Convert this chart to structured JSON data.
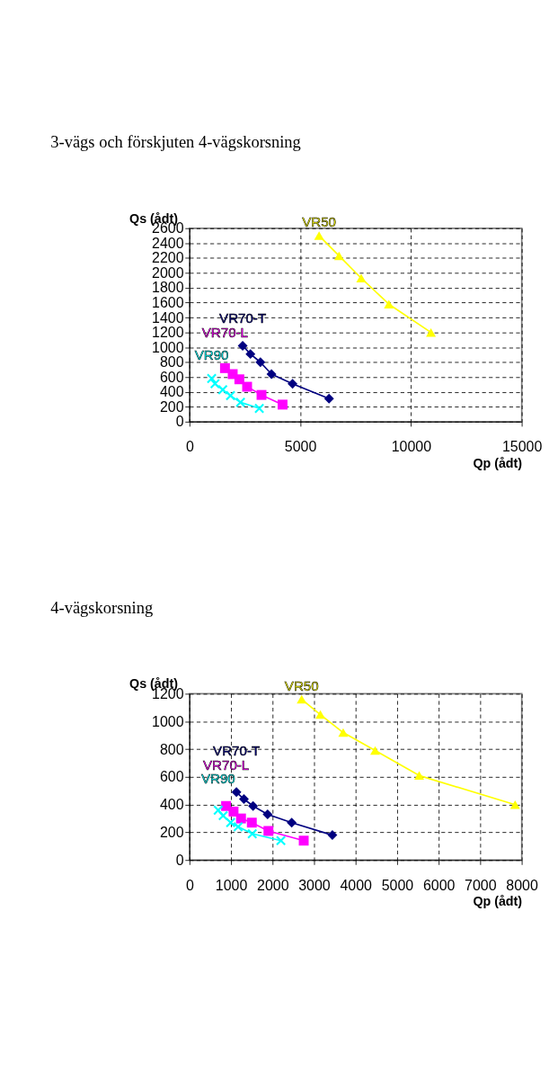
{
  "chart_data": [
    {
      "type": "line",
      "title": "3-vägs och förskjuten 4-vägskorsning",
      "xlabel": "Qp (ådt)",
      "ylabel": "Qs (ådt)",
      "xlim": [
        0,
        15000
      ],
      "xticks": [
        0,
        5000,
        10000,
        15000
      ],
      "ylim": [
        0,
        2600
      ],
      "yticks": [
        0,
        200,
        400,
        600,
        800,
        1000,
        1200,
        1400,
        1600,
        1800,
        2000,
        2200,
        2400,
        2600
      ],
      "grid": true,
      "line_style": "solid",
      "series": [
        {
          "name": "VR50",
          "color": "#ffff00",
          "marker": "triangle",
          "x": [
            5850,
            6750,
            7750,
            9000,
            10900
          ],
          "values": [
            2500,
            2230,
            1930,
            1580,
            1200
          ]
        },
        {
          "name": "VR70-T",
          "color": "#000080",
          "marker": "diamond",
          "x": [
            2400,
            2750,
            3200,
            3700,
            4650,
            6300
          ],
          "values": [
            1020,
            910,
            800,
            640,
            510,
            310
          ]
        },
        {
          "name": "VR70-L",
          "color": "#ff00ff",
          "marker": "square",
          "x": [
            1600,
            1950,
            2250,
            2600,
            3250,
            4200
          ],
          "values": [
            720,
            640,
            570,
            470,
            360,
            230
          ]
        },
        {
          "name": "VR90",
          "color": "#00ffff",
          "marker": "cross",
          "x": [
            1000,
            1150,
            1500,
            1850,
            2300,
            3150
          ],
          "values": [
            580,
            510,
            430,
            350,
            260,
            180
          ]
        }
      ]
    },
    {
      "type": "line",
      "title": "4-vägskorsning",
      "xlabel": "Qp (ådt)",
      "ylabel": "Qs (ådt)",
      "xlim": [
        0,
        8000
      ],
      "xticks": [
        0,
        1000,
        2000,
        3000,
        4000,
        5000,
        6000,
        7000,
        8000
      ],
      "ylim": [
        0,
        1200
      ],
      "yticks": [
        0,
        200,
        400,
        600,
        800,
        1000,
        1200
      ],
      "grid": true,
      "line_style": "solid",
      "series": [
        {
          "name": "VR50",
          "color": "#ffff00",
          "marker": "triangle",
          "x": [
            2700,
            3150,
            3700,
            4470,
            5530,
            7840
          ],
          "values": [
            1160,
            1050,
            920,
            790,
            610,
            400
          ]
        },
        {
          "name": "VR70-T",
          "color": "#000080",
          "marker": "diamond",
          "x": [
            1130,
            1310,
            1530,
            1880,
            2460,
            3440
          ],
          "values": [
            490,
            440,
            390,
            330,
            270,
            180
          ]
        },
        {
          "name": "VR70-L",
          "color": "#ff00ff",
          "marker": "square",
          "x": [
            880,
            1060,
            1240,
            1500,
            1900,
            2750
          ],
          "values": [
            390,
            350,
            300,
            270,
            210,
            140
          ]
        },
        {
          "name": "VR90",
          "color": "#00ffff",
          "marker": "cross",
          "x": [
            690,
            810,
            990,
            1170,
            1510,
            2200
          ],
          "values": [
            360,
            320,
            270,
            240,
            190,
            140
          ]
        }
      ]
    }
  ]
}
